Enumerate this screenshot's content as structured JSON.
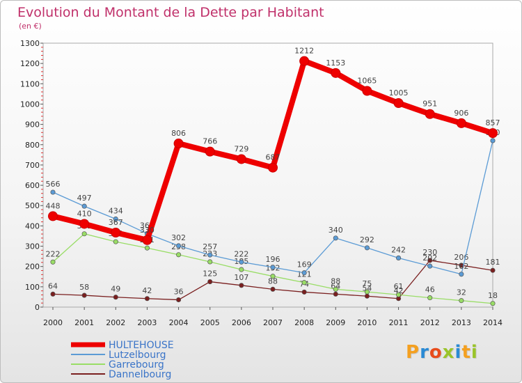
{
  "chart_data": {
    "type": "line",
    "title": "Evolution du Montant de la Dette par Habitant",
    "subtitle": "(en €)",
    "xlabel": "",
    "ylabel": "",
    "ylim": [
      0,
      1300
    ],
    "yticks": [
      0,
      100,
      200,
      300,
      400,
      500,
      600,
      700,
      800,
      900,
      1000,
      1100,
      1200,
      1300
    ],
    "categories": [
      "2000",
      "2001",
      "2002",
      "2003",
      "2004",
      "2005",
      "2006",
      "2007",
      "2008",
      "2009",
      "2010",
      "2011",
      "2012",
      "2013",
      "2014"
    ],
    "grid": false,
    "legend_position": "bottom-left",
    "series": [
      {
        "name": "HULTEHOUSE",
        "color": "#ee0000",
        "values": [
          448,
          410,
          367,
          330,
          806,
          766,
          729,
          687,
          1212,
          1153,
          1065,
          1005,
          951,
          906,
          857
        ],
        "labels": [
          "448",
          "410",
          "367",
          "330",
          "806",
          "766",
          "729",
          "687",
          "1212",
          "1153",
          "1065",
          "1005",
          "951",
          "906",
          "857"
        ]
      },
      {
        "name": "Lutzelbourg",
        "color": "#5b9bd5",
        "values": [
          566,
          497,
          434,
          362,
          302,
          257,
          222,
          196,
          169,
          340,
          292,
          242,
          202,
          162,
          820
        ],
        "labels": [
          "566",
          "497",
          "434",
          "362",
          "302",
          "257",
          "222",
          "196",
          "169",
          "340",
          "292",
          "242",
          "202",
          "162",
          "820"
        ]
      },
      {
        "name": "Garrebourg",
        "color": "#99dd66",
        "values": [
          222,
          361,
          322,
          291,
          258,
          223,
          185,
          152,
          121,
          88,
          75,
          61,
          46,
          32,
          18
        ],
        "labels": [
          "222",
          "361",
          "322",
          "291",
          "258",
          "223",
          "185",
          "152",
          "121",
          "88",
          "75",
          "61",
          "46",
          "32",
          "18"
        ]
      },
      {
        "name": "Dannelbourg",
        "color": "#7a1f1f",
        "values": [
          64,
          58,
          49,
          42,
          36,
          125,
          107,
          88,
          74,
          64,
          54,
          42,
          230,
          206,
          181
        ],
        "labels": [
          "64",
          "58",
          "49",
          "42",
          "36",
          "125",
          "107",
          "88",
          "74",
          "64",
          "54",
          "42",
          "230",
          "206",
          "181"
        ]
      }
    ]
  },
  "brand": {
    "letters": [
      "P",
      "r",
      "o",
      "x",
      "i",
      "t",
      "i"
    ],
    "colors": [
      "#f4a020",
      "#2a8ad4",
      "#e84c1c",
      "#9ac42a",
      "#2a8ad4",
      "#f4a020",
      "#9ac42a"
    ]
  }
}
